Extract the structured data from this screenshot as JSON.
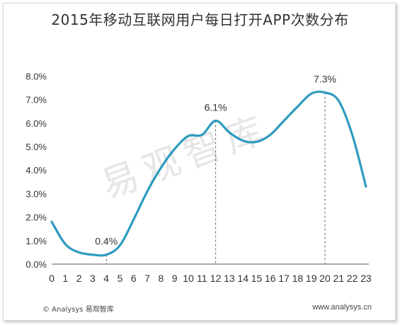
{
  "title": "2015年移动互联网用户每日打开APP次数分布",
  "watermark": "易观智库",
  "footer": {
    "left": "© Analysys 易观智库",
    "right": "www.analysys.cn"
  },
  "colors": {
    "line": "#2e9bbf",
    "axis": "#555555",
    "text": "#333333"
  },
  "chart_data": {
    "type": "line",
    "title": "2015年移动互联网用户每日打开APP次数分布",
    "x": [
      "0",
      "1",
      "2",
      "3",
      "4",
      "5",
      "6",
      "7",
      "8",
      "9",
      "10",
      "11",
      "12",
      "13",
      "14",
      "15",
      "16",
      "17",
      "18",
      "19",
      "20",
      "21",
      "22",
      "23"
    ],
    "series": [
      {
        "values": [
          1.8,
          0.85,
          0.5,
          0.4,
          0.4,
          0.8,
          1.9,
          3.1,
          4.1,
          4.9,
          5.45,
          5.5,
          6.1,
          5.6,
          5.25,
          5.2,
          5.5,
          6.1,
          6.7,
          7.25,
          7.3,
          6.95,
          5.5,
          3.3
        ]
      }
    ],
    "yticks": [
      "8.0%",
      "7.0%",
      "6.0%",
      "5.0%",
      "4.0%",
      "3.0%",
      "2.0%",
      "1.0%",
      "0.0%"
    ],
    "ylim": [
      0,
      8
    ],
    "annotations": [
      {
        "x": 4,
        "value": 0.4,
        "label": "0.4%"
      },
      {
        "x": 12,
        "value": 6.1,
        "label": "6.1%"
      },
      {
        "x": 20,
        "value": 7.3,
        "label": "7.3%"
      }
    ],
    "grid": false,
    "legend": "none"
  }
}
